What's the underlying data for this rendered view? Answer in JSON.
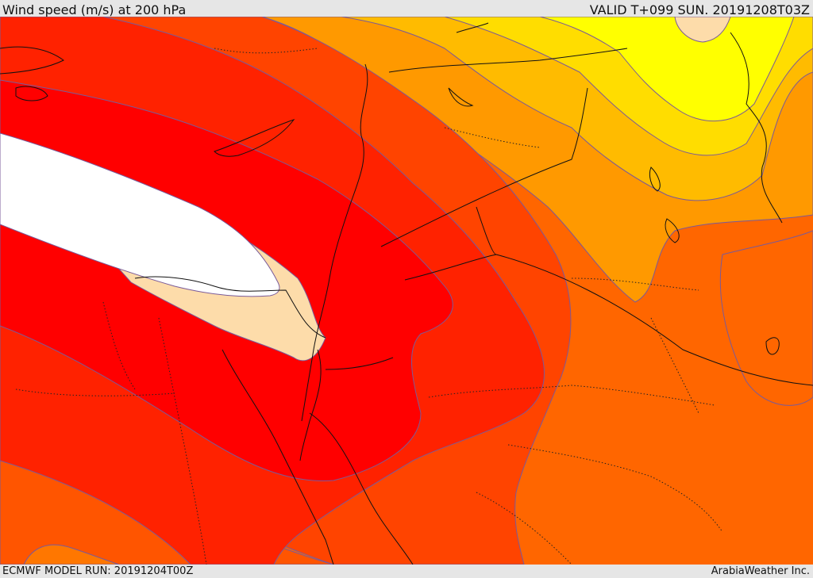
{
  "header": {
    "title": "Wind speed (m/s) at 200 hPa",
    "valid": "VALID T+099 SUN. 20191208T03Z"
  },
  "footer": {
    "model_run": "ECMWF MODEL RUN: 20191204T00Z",
    "brand": "ArabiaWeather Inc."
  },
  "map": {
    "field": "wind-speed",
    "level": "200 hPa",
    "bands": [
      {
        "name": "jet-core",
        "color": "#ffffff"
      },
      {
        "name": "jet-edge",
        "color": "#fddcaa"
      },
      {
        "name": "red",
        "color": "#ff0000"
      },
      {
        "name": "red-orange",
        "color": "#ff2200"
      },
      {
        "name": "orange-red",
        "color": "#ff4400"
      },
      {
        "name": "orange",
        "color": "#ff6600"
      },
      {
        "name": "amber",
        "color": "#ff9900"
      },
      {
        "name": "gold",
        "color": "#ffbb00"
      },
      {
        "name": "yellow-gold",
        "color": "#ffdd00"
      },
      {
        "name": "yellow",
        "color": "#ffff00"
      }
    ]
  }
}
